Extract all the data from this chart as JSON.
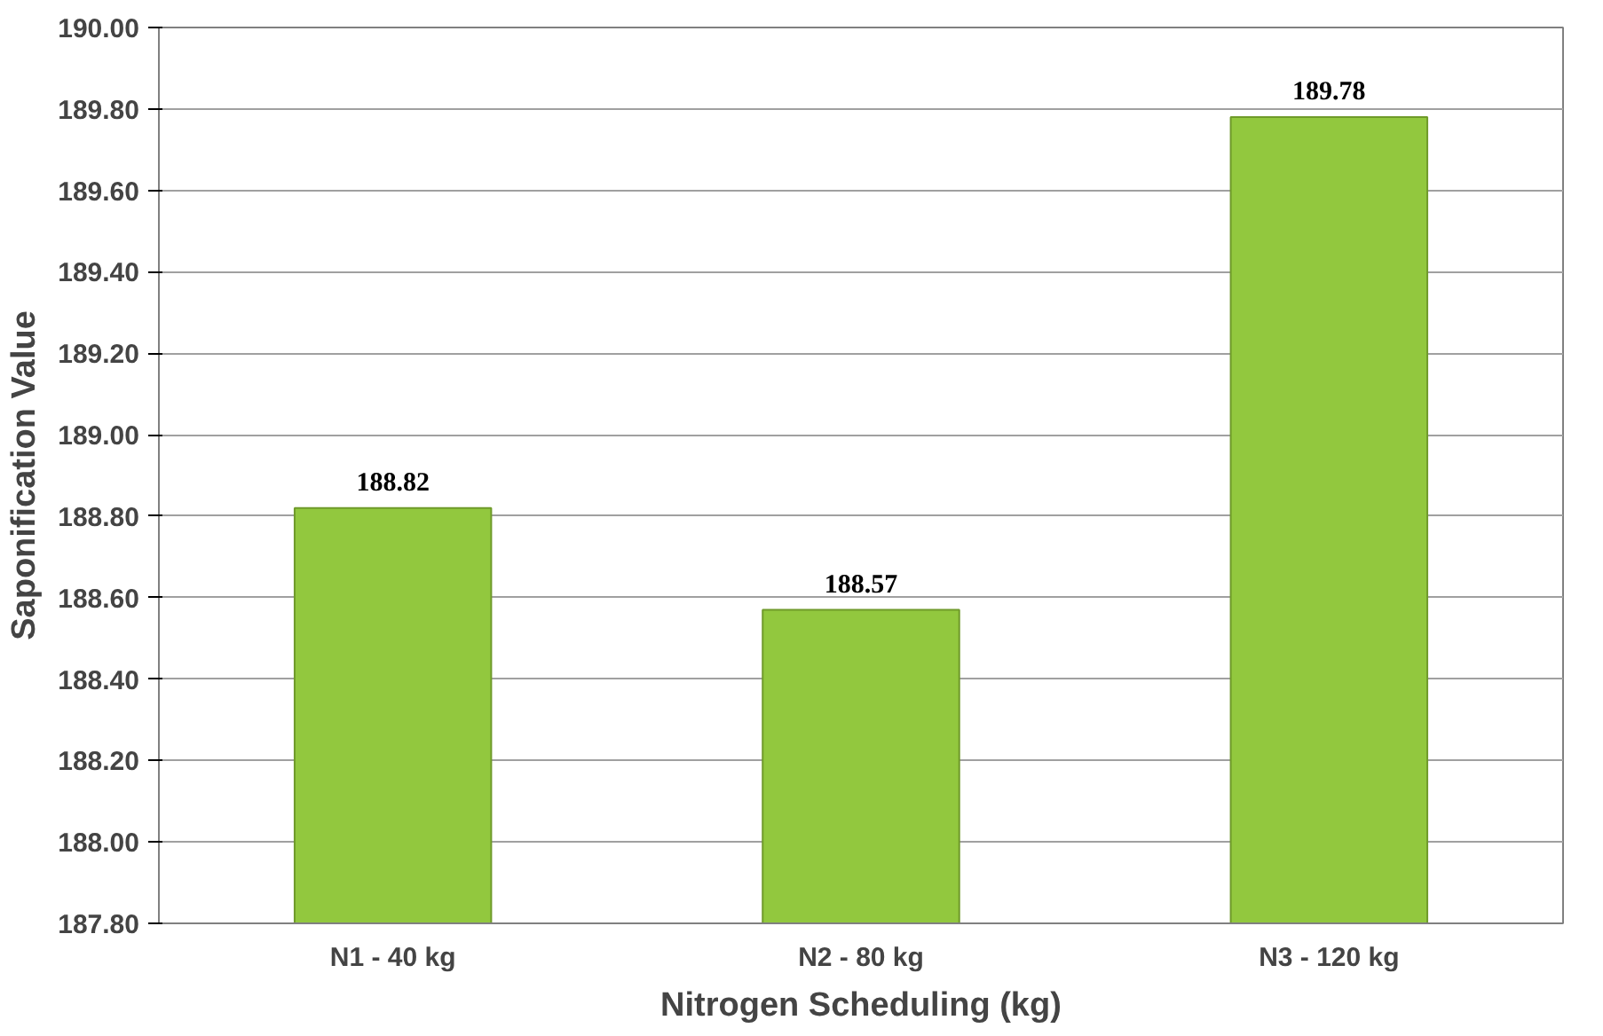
{
  "chart_data": {
    "type": "bar",
    "xlabel": "Nitrogen Scheduling (kg)",
    "ylabel": "Saponification Value",
    "categories": [
      "N1 - 40 kg",
      "N2 - 80 kg",
      "N3 - 120 kg"
    ],
    "values": [
      188.82,
      188.57,
      189.78
    ],
    "color": "#92c83e",
    "ylim": [
      187.8,
      190.0
    ],
    "yticks": [
      {
        "value": 187.8,
        "label": "187.80"
      },
      {
        "value": 188.0,
        "label": "188.00"
      },
      {
        "value": 188.2,
        "label": "188.20"
      },
      {
        "value": 188.4,
        "label": "188.40"
      },
      {
        "value": 188.6,
        "label": "188.60"
      },
      {
        "value": 188.8,
        "label": "188.80"
      },
      {
        "value": 189.0,
        "label": "189.00"
      },
      {
        "value": 189.2,
        "label": "189.20"
      },
      {
        "value": 189.4,
        "label": "189.40"
      },
      {
        "value": 189.6,
        "label": "189.60"
      },
      {
        "value": 189.8,
        "label": "189.80"
      },
      {
        "value": 190.0,
        "label": "190.00"
      }
    ],
    "grid": "y",
    "data_labels": true
  }
}
